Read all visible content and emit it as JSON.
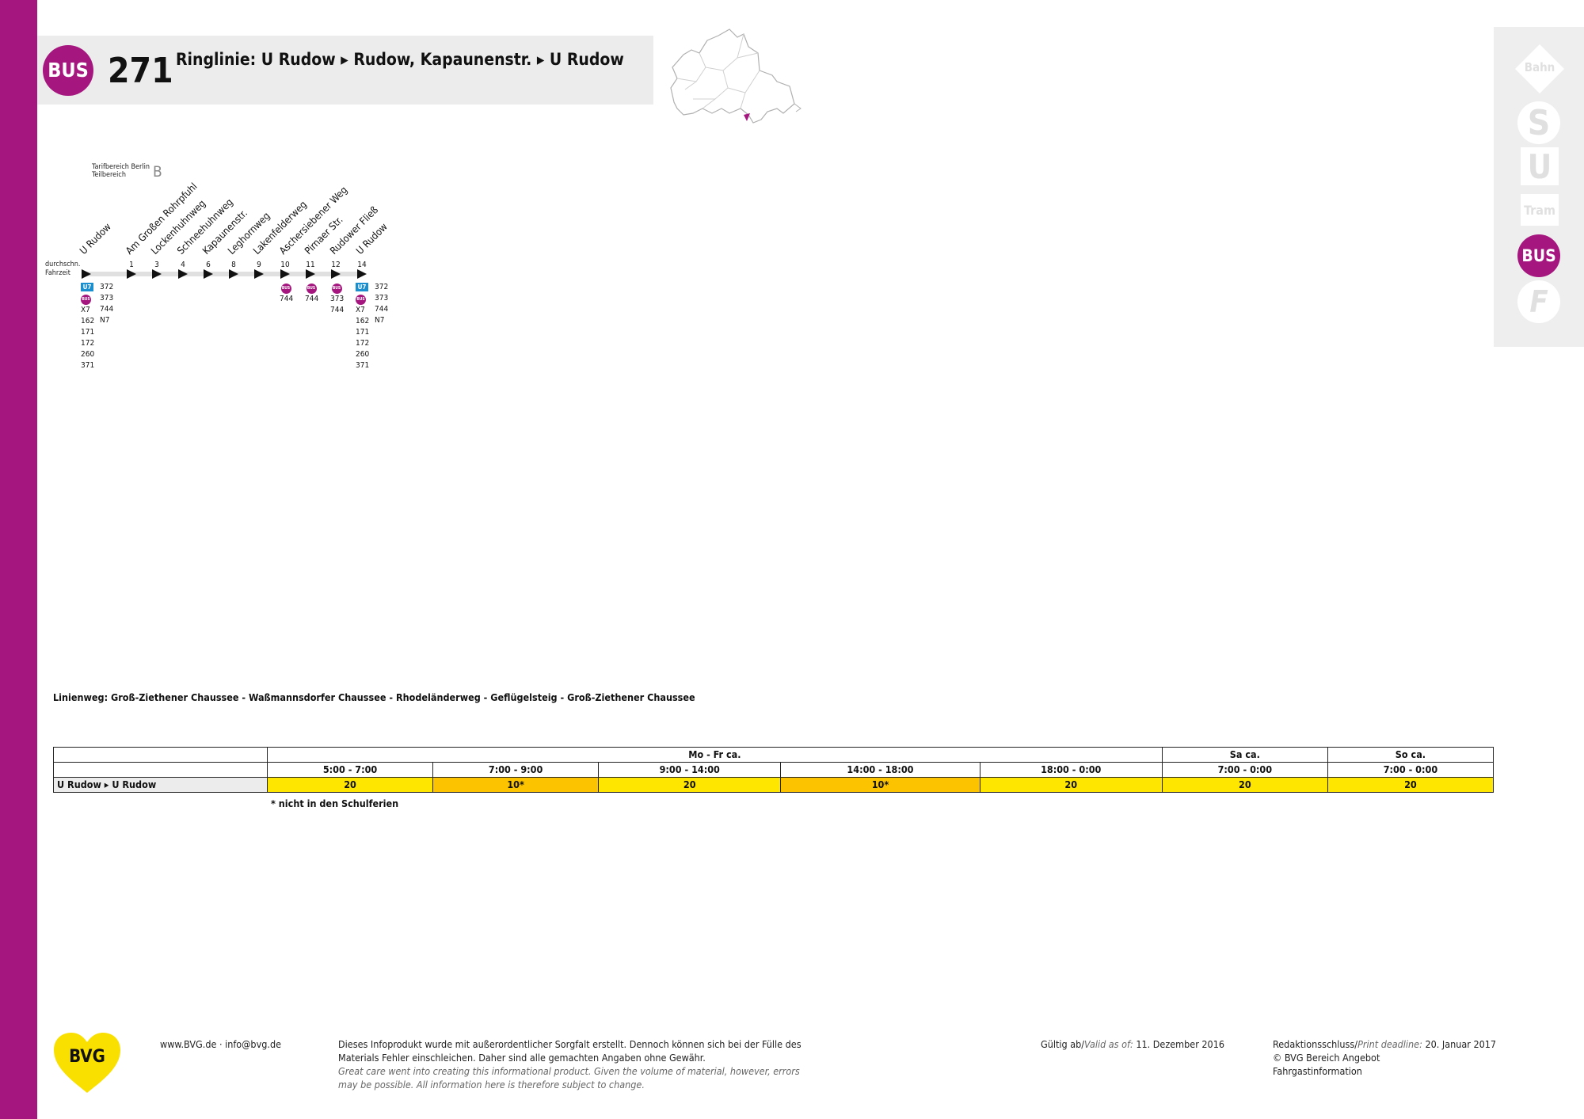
{
  "header": {
    "mode_label": "BUS",
    "line_number": "271",
    "route_title": "Ringlinie: U Rudow ▸ Rudow, Kapaunenstr. ▸ U Rudow"
  },
  "mode_panel": {
    "bahn": "Bahn",
    "s": "S",
    "u": "U",
    "tram": "Tram",
    "bus": "BUS",
    "ferry": "F"
  },
  "tarif": {
    "line1": "Tarifbereich Berlin",
    "line2": "Teilbereich",
    "zone": "B"
  },
  "fahrzeit": {
    "line1": "durchschn.",
    "line2": "Fahrzeit"
  },
  "stops": [
    {
      "name": "U Rudow",
      "time": ""
    },
    {
      "name": "Am Großen Rohrpfuhl",
      "time": "1"
    },
    {
      "name": "Lockenhuhnweg",
      "time": "3"
    },
    {
      "name": "Schneehuhnweg",
      "time": "4"
    },
    {
      "name": "Kapaunenstr.",
      "time": "6"
    },
    {
      "name": "Leghornweg",
      "time": "8"
    },
    {
      "name": "Lakenfelderweg",
      "time": "9"
    },
    {
      "name": "Aschersiebener Weg",
      "time": "10"
    },
    {
      "name": "Pirnaer Str.",
      "time": "11"
    },
    {
      "name": "Rudower Fließ",
      "time": "12"
    },
    {
      "name": "U Rudow",
      "time": "14"
    }
  ],
  "connections": {
    "start_u": "U7",
    "start_bus": "BUS",
    "start_col1": [
      "372",
      "373",
      "X7",
      "162",
      "171",
      "172",
      "260",
      "371"
    ],
    "start_col2": [
      "744",
      "N7"
    ],
    "aschersl": "744",
    "pirnaer": "744",
    "rudower": [
      "373",
      "744"
    ],
    "end_u": "U7",
    "end_bus": "BUS",
    "end_col1": [
      "372",
      "373",
      "X7",
      "162",
      "171",
      "172",
      "260",
      "371"
    ],
    "end_col2": [
      "744",
      "N7"
    ]
  },
  "linienweg": "Linienweg: Groß-Ziethener Chaussee - Waßmannsdorfer Chaussee - Rhodeländerweg - Geflügelsteig - Groß-Ziethener Chaussee",
  "timetable": {
    "groups": [
      "Mo - Fr ca.",
      "Sa ca.",
      "So ca."
    ],
    "periods": [
      "5:00 - 7:00",
      "7:00 - 9:00",
      "9:00 - 14:00",
      "14:00 - 18:00",
      "18:00 - 0:00",
      "7:00 - 0:00",
      "7:00 - 0:00"
    ],
    "row_label": "U Rudow ▸ U Rudow",
    "values": [
      "20",
      "10*",
      "20",
      "10*",
      "20",
      "20",
      "20"
    ],
    "footnote": "* nicht in den Schulferien"
  },
  "colors": {
    "bus_magenta": "#a5167f",
    "u_blue": "#1a8fd0",
    "interval_yellow": "#ffe600",
    "interval_orange": "#fcc300",
    "bvg_yellow": "#f9e000"
  },
  "footer": {
    "logo": "BVG",
    "web": "www.BVG.de · info@bvg.de",
    "disclaimer_de_1": "Dieses Infoprodukt wurde mit außerordentlicher Sorgfalt erstellt. Dennoch können sich bei der Fülle des",
    "disclaimer_de_2": "Materials Fehler einschleichen. Daher sind alle gemachten Angaben ohne Gewähr.",
    "disclaimer_en_1": "Great care went into creating this informational product. Given the volume of material, however, errors",
    "disclaimer_en_2": "may be possible. All information here is therefore subject to change.",
    "valid_label": "Gültig ab/",
    "valid_label_en": "Valid as of:",
    "valid_date": "11. Dezember 2016",
    "deadline_label": "Redaktionsschluss/",
    "deadline_label_en": "Print deadline:",
    "deadline_date": "20. Januar 2017",
    "copyright": "© BVG Bereich Angebot",
    "department": "Fahrgastinformation"
  }
}
